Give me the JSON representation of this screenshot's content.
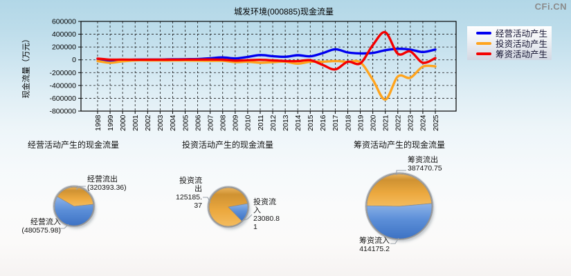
{
  "page": {
    "watermark": "CFi.CN"
  },
  "chart_data": [
    {
      "type": "line",
      "title": "城发环境(000885)现金流量",
      "ylabel": "现金流量（万元）",
      "x": [
        "1998",
        "1999",
        "2000",
        "2001",
        "2002",
        "2003",
        "2004",
        "2005",
        "2006",
        "2007",
        "2008",
        "2009",
        "2010",
        "2011",
        "2012",
        "2013",
        "2014",
        "2015",
        "2016",
        "2017",
        "2018",
        "2019",
        "2020",
        "2021",
        "2022",
        "2023",
        "2024",
        "2025"
      ],
      "ylim": [
        -800000,
        600000
      ],
      "ytick_step": 200000,
      "grid": true,
      "legend_position": "right",
      "series": [
        {
          "name": "经营活动产生",
          "color": "#0000f0",
          "values": [
            15000,
            -12000,
            -5000,
            3000,
            4000,
            5000,
            8000,
            10000,
            12000,
            25000,
            38000,
            22000,
            45000,
            75000,
            57000,
            47000,
            72000,
            55000,
            105000,
            165000,
            115000,
            100000,
            108000,
            150000,
            172000,
            160000,
            122000,
            160182.62
          ]
        },
        {
          "name": "投资活动产生",
          "color": "#ffa41e",
          "values": [
            -18000,
            -45000,
            -22000,
            -8000,
            -8000,
            -10000,
            -10000,
            -10000,
            -12000,
            -15000,
            -15000,
            -35000,
            -30000,
            -45000,
            -36000,
            -29000,
            -60000,
            -29000,
            -30000,
            -18000,
            -32000,
            -40000,
            -310000,
            -620000,
            -260000,
            -280000,
            -105000,
            -102104.56
          ]
        },
        {
          "name": "筹资活动产生",
          "color": "#f40000",
          "values": [
            20000,
            3000,
            5000,
            2000,
            2000,
            2000,
            3000,
            4000,
            4000,
            5000,
            2000,
            -12000,
            -5000,
            0,
            -8000,
            -18000,
            -20000,
            -5000,
            -80000,
            -150000,
            -30000,
            -55000,
            230000,
            430000,
            95000,
            130000,
            -45000,
            26704.45
          ]
        }
      ]
    },
    {
      "type": "pie",
      "title": "经营活动产生的现金流量",
      "slices": [
        {
          "label": "经营流出",
          "value": 320393.36,
          "value_text": "(320393.36)",
          "color": "#e9a63a"
        },
        {
          "label": "经营流入",
          "value": 480575.98,
          "value_text": "(480575.98)",
          "color": "#4f84d2"
        }
      ]
    },
    {
      "type": "pie",
      "title": "投资活动产生的现金流量",
      "slices": [
        {
          "label": "投资流出",
          "value": 125185.37,
          "value_text": "125185.37",
          "color": "#e9a63a"
        },
        {
          "label": "投资流入",
          "value": 23080.81,
          "value_text": "23080.81",
          "color": "#4f84d2"
        }
      ]
    },
    {
      "type": "pie",
      "title": "筹资活动产生的现金流量",
      "slices": [
        {
          "label": "筹资流出",
          "value": 387470.75,
          "value_text": "387470.75",
          "color": "#e9a63a"
        },
        {
          "label": "筹资流入",
          "value": 414175.2,
          "value_text": "414175.2",
          "color": "#4f84d2"
        }
      ]
    }
  ]
}
